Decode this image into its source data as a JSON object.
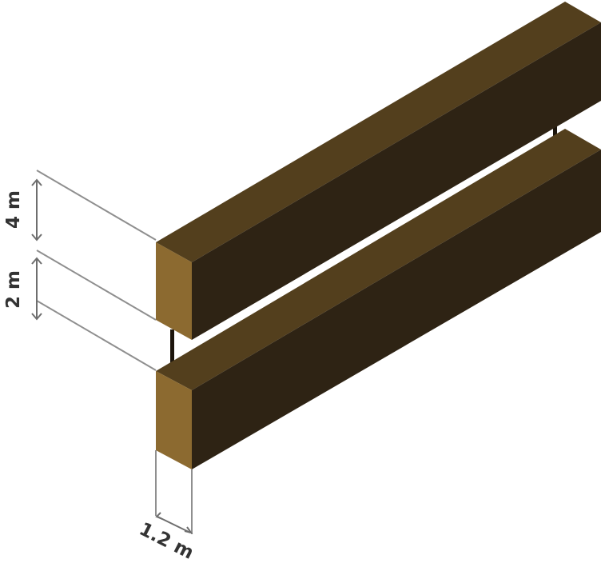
{
  "dimensions": {
    "upper_beam_height": "4 m",
    "gap_between_beams": "2 m",
    "beam_depth": "1.2 m"
  },
  "colors": {
    "front_face": "#8c6a30",
    "top_face": "#533f1d",
    "side_face": "#2e2314",
    "support_post": "#1c150c",
    "dimension_line": "#8f8f8f",
    "text": "#333333"
  }
}
